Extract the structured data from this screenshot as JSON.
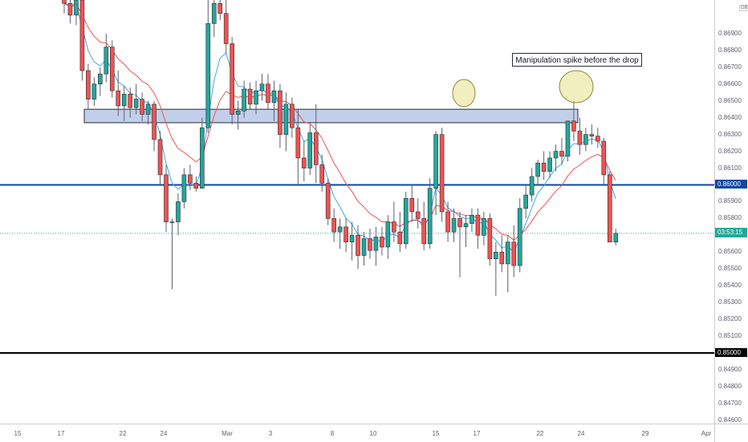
{
  "chart_data": {
    "type": "candlestick",
    "currency": "GBP",
    "y_range": [
      0.8458,
      0.871
    ],
    "price_ticks": [
      "0.85000",
      "0.84600",
      "0.84700",
      "0.84800",
      "0.84900",
      "0.85100",
      "0.85200",
      "0.85300",
      "0.85400",
      "0.85500",
      "0.85600",
      "0.85800",
      "0.85900",
      "0.86100",
      "0.86200",
      "0.86300",
      "0.86400",
      "0.86500",
      "0.86600",
      "0.86700",
      "0.86800",
      "0.86900"
    ],
    "date_ticks": [
      "15",
      "17",
      "22",
      "24",
      "Mar",
      "3",
      "8",
      "10",
      "15",
      "17",
      "22",
      "24",
      "29",
      "Apr"
    ],
    "horizontal_levels": [
      {
        "price": 0.86,
        "label": "0.86000",
        "color": "#0d47a1"
      },
      {
        "price": 0.85,
        "label": "0.85000",
        "color": "#000000"
      }
    ],
    "last_price": {
      "price": 0.85712,
      "label": "0.85712",
      "countdown": "03:53:15",
      "color": "#26a69a"
    },
    "zone": {
      "price_low": 0.8637,
      "price_high": 0.8645,
      "color": "#8ea8d8"
    },
    "annotation": "Manipulation spike before the drop",
    "ohlc": [
      [
        0.8712,
        0.8718,
        0.8702,
        0.8708
      ],
      [
        0.8708,
        0.8716,
        0.8696,
        0.8701
      ],
      [
        0.8701,
        0.8714,
        0.8695,
        0.871
      ],
      [
        0.871,
        0.8711,
        0.8662,
        0.8668
      ],
      [
        0.8668,
        0.8672,
        0.8645,
        0.8651
      ],
      [
        0.8651,
        0.8664,
        0.8647,
        0.866
      ],
      [
        0.866,
        0.867,
        0.8653,
        0.8666
      ],
      [
        0.8666,
        0.869,
        0.8661,
        0.8682
      ],
      [
        0.8682,
        0.8686,
        0.8652,
        0.8656
      ],
      [
        0.8656,
        0.8668,
        0.8641,
        0.8647
      ],
      [
        0.8647,
        0.8659,
        0.8638,
        0.8654
      ],
      [
        0.8654,
        0.8658,
        0.864,
        0.8646
      ],
      [
        0.8646,
        0.866,
        0.8642,
        0.8651
      ],
      [
        0.8651,
        0.8655,
        0.8638,
        0.8642
      ],
      [
        0.8642,
        0.865,
        0.8636,
        0.8648
      ],
      [
        0.8648,
        0.865,
        0.862,
        0.8627
      ],
      [
        0.8627,
        0.8632,
        0.86,
        0.8606
      ],
      [
        0.8606,
        0.8612,
        0.8572,
        0.8578
      ],
      [
        0.8578,
        0.858,
        0.8538,
        0.8578
      ],
      [
        0.8578,
        0.8595,
        0.857,
        0.859
      ],
      [
        0.859,
        0.861,
        0.8586,
        0.8606
      ],
      [
        0.8606,
        0.8612,
        0.8597,
        0.8601
      ],
      [
        0.8601,
        0.8605,
        0.8596,
        0.8598
      ],
      [
        0.8598,
        0.864,
        0.8598,
        0.8634
      ],
      [
        0.8634,
        0.8712,
        0.8631,
        0.8696
      ],
      [
        0.8696,
        0.8712,
        0.8688,
        0.8708
      ],
      [
        0.8708,
        0.8712,
        0.8698,
        0.8702
      ],
      [
        0.8702,
        0.871,
        0.8678,
        0.8684
      ],
      [
        0.8684,
        0.8688,
        0.8636,
        0.8642
      ],
      [
        0.8642,
        0.865,
        0.8633,
        0.8644
      ],
      [
        0.8644,
        0.8662,
        0.864,
        0.8657
      ],
      [
        0.8657,
        0.8661,
        0.8645,
        0.8648
      ],
      [
        0.8648,
        0.8662,
        0.8642,
        0.8656
      ],
      [
        0.8656,
        0.8666,
        0.865,
        0.866
      ],
      [
        0.866,
        0.8666,
        0.8645,
        0.8649
      ],
      [
        0.8649,
        0.8662,
        0.8638,
        0.8656
      ],
      [
        0.8656,
        0.866,
        0.8622,
        0.863
      ],
      [
        0.863,
        0.8655,
        0.862,
        0.8648
      ],
      [
        0.8648,
        0.8652,
        0.8628,
        0.8634
      ],
      [
        0.8634,
        0.8645,
        0.86,
        0.8616
      ],
      [
        0.8616,
        0.8626,
        0.8602,
        0.861
      ],
      [
        0.861,
        0.8636,
        0.8606,
        0.8631
      ],
      [
        0.8631,
        0.8648,
        0.8601,
        0.8612
      ],
      [
        0.8612,
        0.8618,
        0.8596,
        0.8601
      ],
      [
        0.8601,
        0.8604,
        0.8576,
        0.858
      ],
      [
        0.858,
        0.8586,
        0.8566,
        0.8572
      ],
      [
        0.8572,
        0.858,
        0.8562,
        0.8575
      ],
      [
        0.8575,
        0.858,
        0.856,
        0.8566
      ],
      [
        0.8566,
        0.8578,
        0.8555,
        0.857
      ],
      [
        0.857,
        0.8576,
        0.855,
        0.8558
      ],
      [
        0.8558,
        0.8572,
        0.8552,
        0.8568
      ],
      [
        0.8568,
        0.8574,
        0.8556,
        0.8561
      ],
      [
        0.8561,
        0.8575,
        0.8552,
        0.8569
      ],
      [
        0.8569,
        0.8575,
        0.8558,
        0.8563
      ],
      [
        0.8563,
        0.8582,
        0.8556,
        0.8578
      ],
      [
        0.8578,
        0.859,
        0.8566,
        0.8572
      ],
      [
        0.8572,
        0.8584,
        0.856,
        0.8565
      ],
      [
        0.8565,
        0.8596,
        0.8562,
        0.8592
      ],
      [
        0.8592,
        0.86,
        0.8578,
        0.8584
      ],
      [
        0.8584,
        0.8592,
        0.8574,
        0.858
      ],
      [
        0.858,
        0.859,
        0.8561,
        0.8565
      ],
      [
        0.8565,
        0.8604,
        0.8562,
        0.8598
      ],
      [
        0.8598,
        0.8632,
        0.8582,
        0.863
      ],
      [
        0.863,
        0.8634,
        0.8578,
        0.8584
      ],
      [
        0.8584,
        0.859,
        0.8566,
        0.8572
      ],
      [
        0.8572,
        0.8586,
        0.8566,
        0.858
      ],
      [
        0.858,
        0.8584,
        0.8545,
        0.8575
      ],
      [
        0.8575,
        0.8582,
        0.8563,
        0.8577
      ],
      [
        0.8577,
        0.8586,
        0.8572,
        0.8582
      ],
      [
        0.8582,
        0.8586,
        0.8562,
        0.857
      ],
      [
        0.857,
        0.8584,
        0.8564,
        0.858
      ],
      [
        0.858,
        0.8583,
        0.8552,
        0.8556
      ],
      [
        0.8556,
        0.8566,
        0.8534,
        0.856
      ],
      [
        0.856,
        0.857,
        0.8548,
        0.8553
      ],
      [
        0.8553,
        0.857,
        0.8536,
        0.8566
      ],
      [
        0.8566,
        0.8576,
        0.8545,
        0.8552
      ],
      [
        0.8552,
        0.8592,
        0.8548,
        0.8586
      ],
      [
        0.8586,
        0.86,
        0.858,
        0.8594
      ],
      [
        0.8594,
        0.861,
        0.859,
        0.8605
      ],
      [
        0.8605,
        0.8615,
        0.86,
        0.8613
      ],
      [
        0.8613,
        0.862,
        0.8603,
        0.8608
      ],
      [
        0.8608,
        0.862,
        0.8604,
        0.8616
      ],
      [
        0.8616,
        0.8624,
        0.8608,
        0.862
      ],
      [
        0.862,
        0.8628,
        0.8612,
        0.8617
      ],
      [
        0.8617,
        0.8638,
        0.8614,
        0.8638
      ],
      [
        0.8638,
        0.865,
        0.8626,
        0.8632
      ],
      [
        0.8632,
        0.864,
        0.8618,
        0.8624
      ],
      [
        0.8624,
        0.8634,
        0.862,
        0.863
      ],
      [
        0.863,
        0.8636,
        0.8624,
        0.8629
      ],
      [
        0.8629,
        0.8634,
        0.8622,
        0.8626
      ],
      [
        0.8626,
        0.8628,
        0.86,
        0.8606
      ],
      [
        0.8606,
        0.8608,
        0.8566,
        0.8566
      ],
      [
        0.8566,
        0.8574,
        0.8564,
        0.85712
      ]
    ]
  }
}
